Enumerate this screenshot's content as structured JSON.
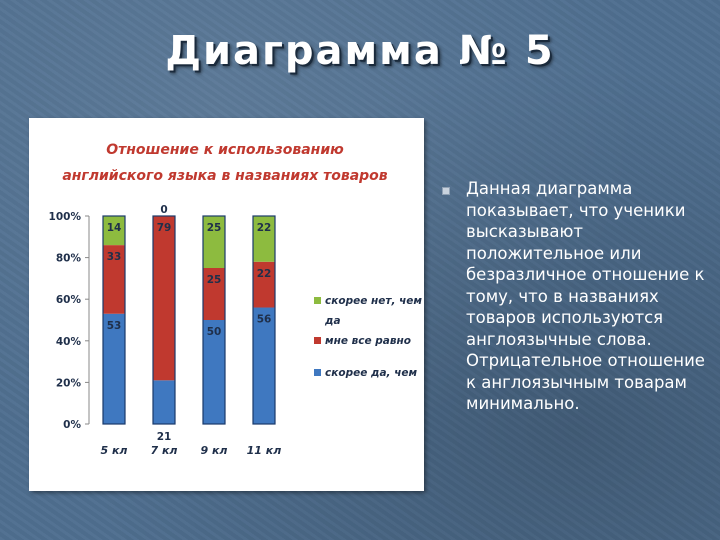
{
  "slide": {
    "title": "Диаграмма № 5",
    "bullet_text": "Данная диаграмма показывает, что ученики высказывают положительное или безразличное отношение к тому, что в названиях товаров используются англоязычные слова. Отрицательное отношение к англоязычным товарам минимально."
  },
  "chart_data": {
    "type": "bar",
    "stacked": true,
    "percent_stacked": true,
    "title_lines": [
      "Отношение к использованию",
      "английского языка в названиях товаров"
    ],
    "categories": [
      "5 кл",
      "7 кл",
      "9 кл",
      "11 кл"
    ],
    "series": [
      {
        "name": "скорее да, чем",
        "values": [
          53,
          21,
          50,
          56
        ],
        "color": "#3f78c0"
      },
      {
        "name": "мне все равно",
        "values": [
          33,
          79,
          25,
          22
        ],
        "color": "#c0392f"
      },
      {
        "name": "скорее нет, чем да",
        "values": [
          14,
          0,
          25,
          22
        ],
        "color": "#8dbb3f"
      }
    ],
    "y_ticks": [
      "0%",
      "20%",
      "40%",
      "60%",
      "80%",
      "100%"
    ],
    "ylim": [
      0,
      100
    ],
    "legend_position": "right",
    "grid": false,
    "colors": {
      "title": "#c0392f",
      "labels": "#1f2f4a",
      "edge": "#1a3a6a"
    }
  }
}
